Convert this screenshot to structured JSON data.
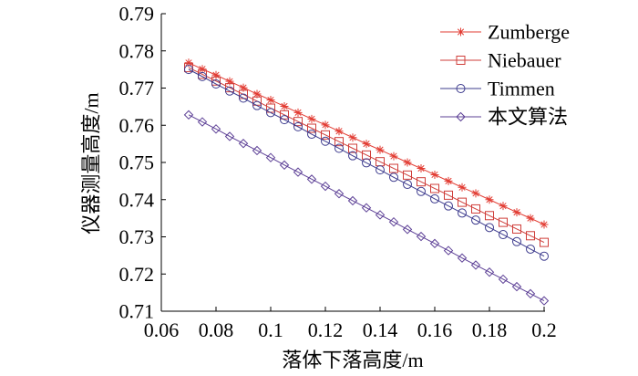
{
  "chart_data": {
    "type": "line",
    "xlabel": "落体下落高度/m",
    "ylabel": "仪器测量高度/m",
    "xlim": [
      0.06,
      0.2
    ],
    "ylim": [
      0.71,
      0.79
    ],
    "x_tick_labels": [
      "0.06",
      "0.08",
      "0.1",
      "0.12",
      "0.14",
      "0.16",
      "0.18",
      "0.2"
    ],
    "y_tick_labels": [
      "0.71",
      "0.72",
      "0.73",
      "0.74",
      "0.75",
      "0.76",
      "0.77",
      "0.78",
      "0.79"
    ],
    "grid": false,
    "legend": "top-right",
    "x": [
      0.07,
      0.075,
      0.08,
      0.085,
      0.09,
      0.095,
      0.1,
      0.105,
      0.11,
      0.115,
      0.12,
      0.125,
      0.13,
      0.135,
      0.14,
      0.145,
      0.15,
      0.155,
      0.16,
      0.165,
      0.17,
      0.175,
      0.18,
      0.185,
      0.19,
      0.195,
      0.2
    ],
    "series": [
      {
        "name": "Zumberge",
        "color": "#e23b32",
        "marker": "asterisk",
        "values": [
          0.7768,
          0.7751,
          0.7735,
          0.7718,
          0.7701,
          0.7684,
          0.7668,
          0.7651,
          0.7634,
          0.7617,
          0.7601,
          0.7584,
          0.7567,
          0.755,
          0.7534,
          0.7517,
          0.75,
          0.7484,
          0.7467,
          0.745,
          0.7433,
          0.7417,
          0.74,
          0.7383,
          0.7366,
          0.735,
          0.7333
        ]
      },
      {
        "name": "Niebauer",
        "color": "#cf3e3a",
        "marker": "square",
        "values": [
          0.7755,
          0.7737,
          0.7719,
          0.7701,
          0.7683,
          0.7665,
          0.7646,
          0.7628,
          0.761,
          0.7592,
          0.7574,
          0.7556,
          0.7538,
          0.752,
          0.7502,
          0.7484,
          0.7466,
          0.7448,
          0.743,
          0.7412,
          0.7393,
          0.7375,
          0.7357,
          0.7339,
          0.7321,
          0.7303,
          0.7285
        ]
      },
      {
        "name": "Timmen",
        "color": "#3e3c8e",
        "marker": "circle",
        "values": [
          0.775,
          0.7731,
          0.7711,
          0.7692,
          0.7673,
          0.7653,
          0.7634,
          0.7615,
          0.7596,
          0.7576,
          0.7557,
          0.7538,
          0.7518,
          0.7499,
          0.748,
          0.746,
          0.7441,
          0.7422,
          0.7402,
          0.7383,
          0.7364,
          0.7345,
          0.7325,
          0.7306,
          0.7287,
          0.7267,
          0.7248
        ]
      },
      {
        "name": "本文算法",
        "color": "#5d4096",
        "marker": "diamond",
        "values": [
          0.7628,
          0.7609,
          0.759,
          0.757,
          0.7551,
          0.7532,
          0.7513,
          0.7493,
          0.7474,
          0.7455,
          0.7436,
          0.7416,
          0.7397,
          0.7378,
          0.7359,
          0.734,
          0.732,
          0.7301,
          0.7282,
          0.7263,
          0.7243,
          0.7224,
          0.7205,
          0.7186,
          0.7166,
          0.7147,
          0.7128
        ]
      }
    ]
  }
}
